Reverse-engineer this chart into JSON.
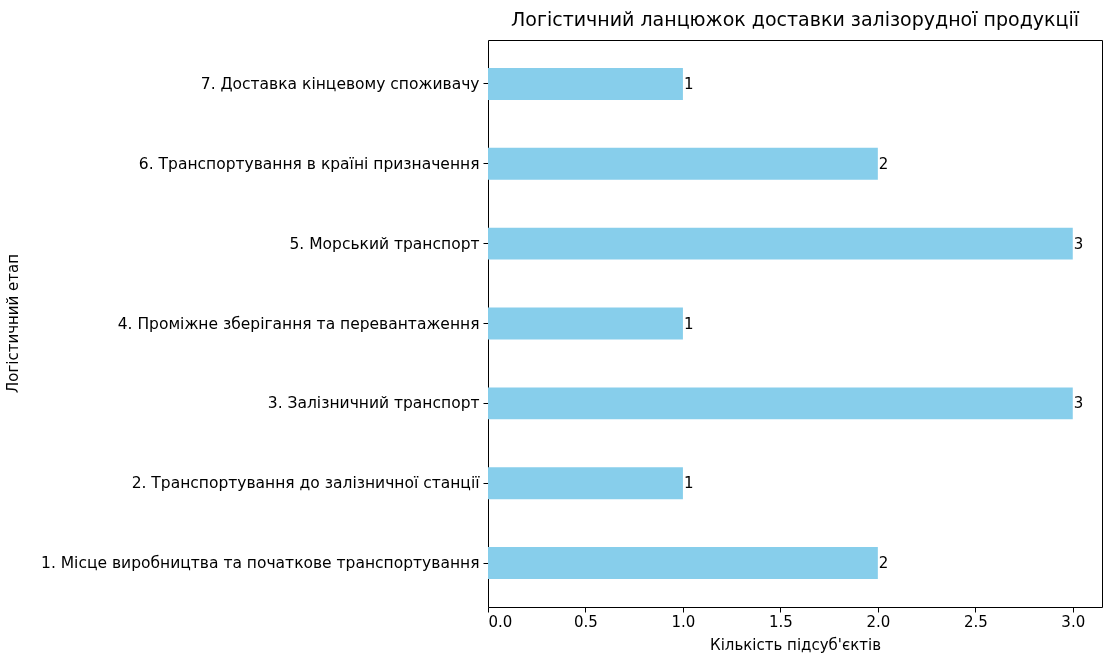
{
  "chart_data": {
    "type": "bar",
    "orientation": "horizontal",
    "title": "Логістичний ланцюжок доставки залізорудної продукції",
    "xlabel": "Кількість підсуб'єктів",
    "ylabel": "Логістичний етап",
    "categories": [
      "7. Доставка кінцевому споживачу",
      "6. Транспортування в країні призначення",
      "5. Морський транспорт",
      "4. Проміжне зберігання та перевантаження",
      "3. Залізничний транспорт",
      "2. Транспортування до залізничної станції",
      "1. Місце виробництва та початкове транспортування"
    ],
    "values": [
      1,
      2,
      3,
      1,
      3,
      1,
      2
    ],
    "color": "#87ceeb",
    "data_labels": true,
    "grid": false,
    "xlim": [
      0,
      3.15
    ],
    "xticks": [
      {
        "value": 0,
        "label": "0.0"
      },
      {
        "value": 0.5,
        "label": "0.5"
      },
      {
        "value": 1,
        "label": "1.0"
      },
      {
        "value": 1.5,
        "label": "1.5"
      },
      {
        "value": 2,
        "label": "2.0"
      },
      {
        "value": 2.5,
        "label": "2.5"
      },
      {
        "value": 3,
        "label": "3.0"
      }
    ]
  }
}
